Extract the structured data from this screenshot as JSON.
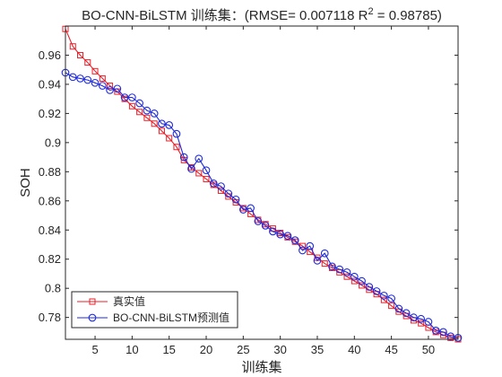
{
  "chart_data": {
    "type": "line",
    "title": {
      "prefix": "BO-CNN-BiLSTM 训练集：(RMSE= 0.007118 R",
      "superscript": "2",
      "suffix": "  = 0.98785)"
    },
    "xlabel": "训练集",
    "ylabel": "SOH",
    "xlim": [
      1,
      54
    ],
    "ylim": [
      0.765,
      0.98
    ],
    "xticks": [
      5,
      10,
      15,
      20,
      25,
      30,
      35,
      40,
      45,
      50
    ],
    "yticks": [
      0.78,
      0.8,
      0.82,
      0.84,
      0.86,
      0.88,
      0.9,
      0.92,
      0.94,
      0.96
    ],
    "ytick_labels": [
      "0.78",
      "0.8",
      "0.82",
      "0.84",
      "0.86",
      "0.88",
      "0.9",
      "0.92",
      "0.94",
      "0.96"
    ],
    "grid": false,
    "legend_position": "bottom-left",
    "x": [
      1,
      2,
      3,
      4,
      5,
      6,
      7,
      8,
      9,
      10,
      11,
      12,
      13,
      14,
      15,
      16,
      17,
      18,
      19,
      20,
      21,
      22,
      23,
      24,
      25,
      26,
      27,
      28,
      29,
      30,
      31,
      32,
      33,
      34,
      35,
      36,
      37,
      38,
      39,
      40,
      41,
      42,
      43,
      44,
      45,
      46,
      47,
      48,
      49,
      50,
      51,
      52,
      53,
      54
    ],
    "series": [
      {
        "name": "真实值",
        "color": "#e8202a",
        "marker": "square",
        "values": [
          0.978,
          0.966,
          0.96,
          0.955,
          0.949,
          0.944,
          0.939,
          0.935,
          0.93,
          0.925,
          0.921,
          0.917,
          0.913,
          0.908,
          0.903,
          0.897,
          0.888,
          0.883,
          0.879,
          0.875,
          0.871,
          0.867,
          0.863,
          0.859,
          0.855,
          0.851,
          0.847,
          0.844,
          0.841,
          0.838,
          0.835,
          0.832,
          0.829,
          0.825,
          0.821,
          0.817,
          0.814,
          0.811,
          0.808,
          0.805,
          0.802,
          0.799,
          0.796,
          0.792,
          0.788,
          0.784,
          0.781,
          0.778,
          0.776,
          0.773,
          0.77,
          0.768,
          0.766,
          0.765
        ]
      },
      {
        "name": "BO-CNN-BiLSTM预测值",
        "color": "#1f2bdb",
        "marker": "circle",
        "values": [
          0.948,
          0.945,
          0.944,
          0.943,
          0.941,
          0.939,
          0.936,
          0.937,
          0.931,
          0.931,
          0.927,
          0.922,
          0.92,
          0.913,
          0.912,
          0.906,
          0.89,
          0.882,
          0.889,
          0.881,
          0.872,
          0.87,
          0.865,
          0.861,
          0.854,
          0.855,
          0.846,
          0.843,
          0.839,
          0.837,
          0.836,
          0.833,
          0.826,
          0.829,
          0.819,
          0.824,
          0.815,
          0.813,
          0.811,
          0.808,
          0.805,
          0.801,
          0.798,
          0.795,
          0.793,
          0.786,
          0.783,
          0.78,
          0.779,
          0.777,
          0.771,
          0.77,
          0.767,
          0.766
        ]
      }
    ]
  }
}
